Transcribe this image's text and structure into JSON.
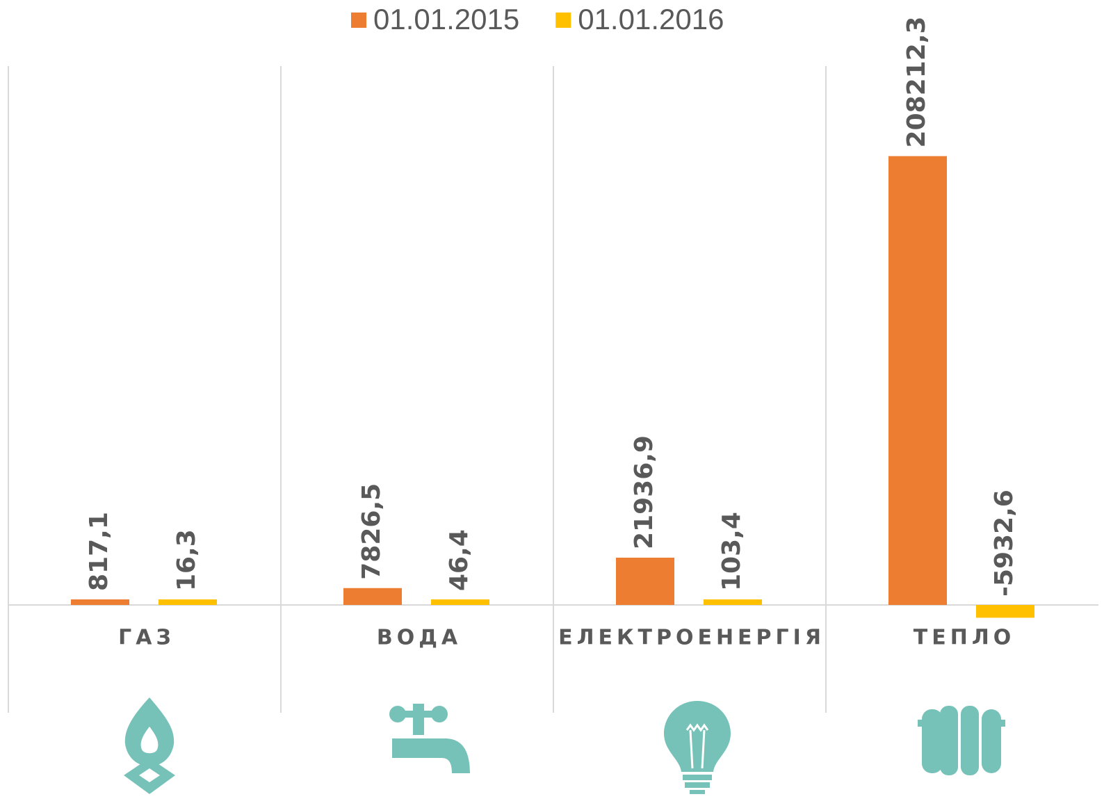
{
  "chart_data": {
    "type": "bar",
    "categories": [
      "ГАЗ",
      "ВОДА",
      "ЕЛЕКТРОЕНЕРГІЯ",
      "ТЕПЛО"
    ],
    "series": [
      {
        "name": "01.01.2015",
        "color": "#ED7D31",
        "values": [
          817.1,
          7826.5,
          21936.9,
          208212.3
        ],
        "value_labels": [
          "817,1",
          "7826,5",
          "21936,9",
          "208212,3"
        ]
      },
      {
        "name": "01.01.2016",
        "color": "#FFC000",
        "values": [
          16.3,
          46.4,
          103.4,
          -5932.6
        ],
        "value_labels": [
          "16,3",
          "46,4",
          "103,4",
          "-5932,6"
        ]
      }
    ],
    "ylim": [
      -50000,
      250000
    ],
    "legend": "top"
  }
}
